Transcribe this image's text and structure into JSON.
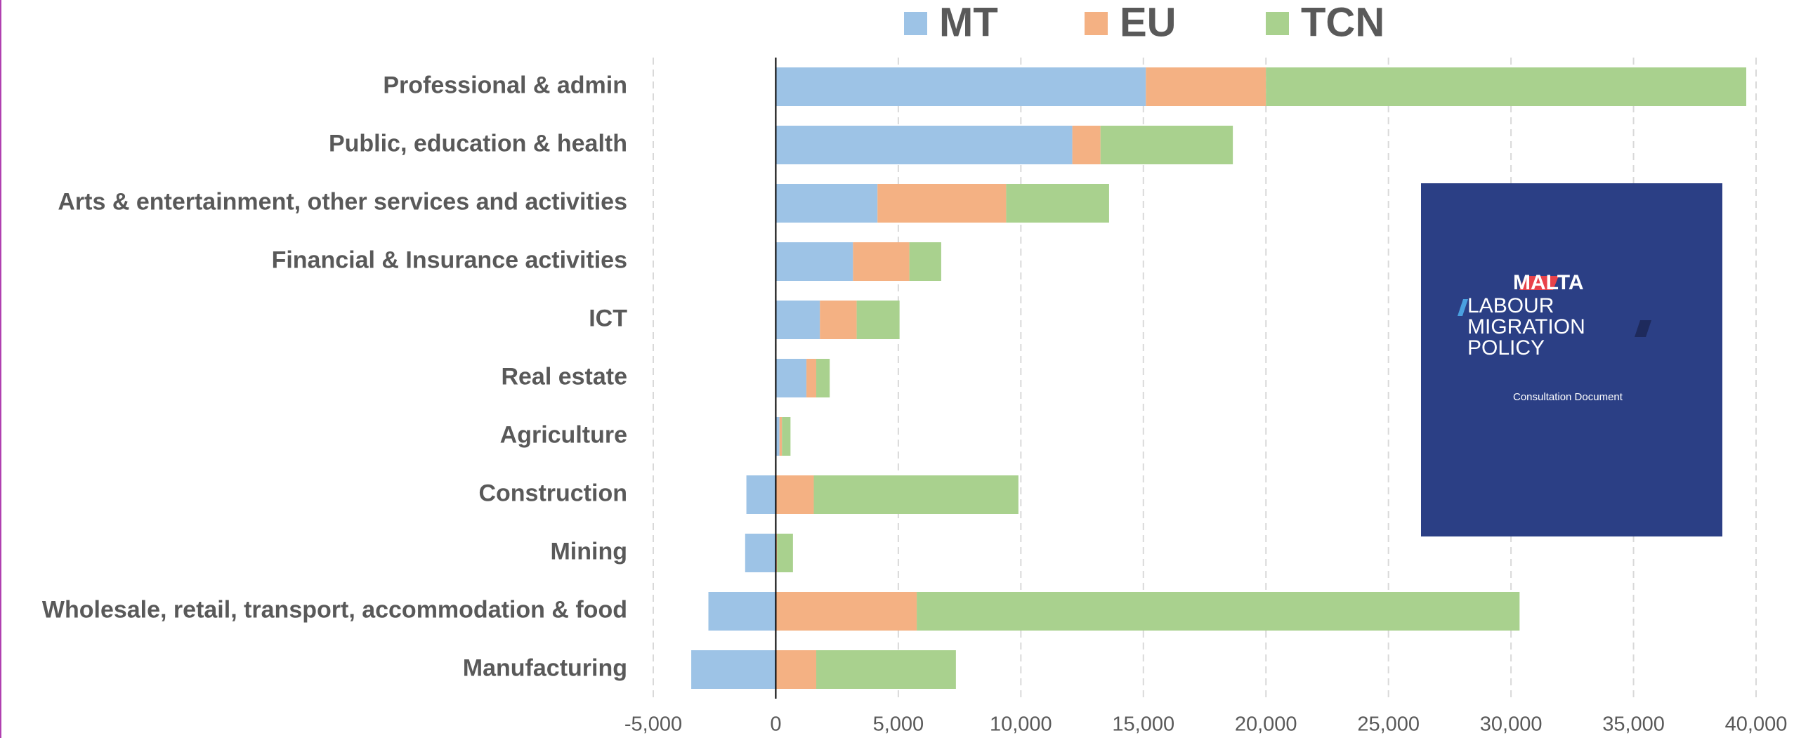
{
  "chart_data": {
    "type": "stacked_hbar",
    "categories": [
      "Professional & admin",
      "Public, education & health",
      "Arts & entertainment, other services and activities",
      "Financial & Insurance activities",
      "ICT",
      "Real estate",
      "Agriculture",
      "Construction",
      "Mining",
      "Wholesale, retail, transport, accommodation & food",
      "Manufacturing"
    ],
    "series": [
      {
        "name": "MT",
        "color": "#9dc3e6",
        "values": [
          15100,
          12100,
          4150,
          3150,
          1800,
          1250,
          150,
          -1200,
          -1250,
          -2750,
          -3450
        ]
      },
      {
        "name": "EU",
        "color": "#f4b183",
        "values": [
          4900,
          1150,
          5250,
          2300,
          1500,
          400,
          100,
          1550,
          50,
          5750,
          1650
        ]
      },
      {
        "name": "TCN",
        "color": "#a9d18e",
        "values": [
          19600,
          5400,
          4200,
          1300,
          1750,
          550,
          350,
          8350,
          650,
          24600,
          5700
        ]
      }
    ],
    "xlim": [
      -5000,
      40000
    ],
    "xticks": [
      {
        "value": -5000,
        "label": "-5,000"
      },
      0,
      {
        "value": 5000,
        "label": "5,000"
      },
      {
        "value": 10000,
        "label": "10,000"
      },
      {
        "value": 15000,
        "label": "15,000"
      },
      {
        "value": 20000,
        "label": "20,000"
      },
      {
        "value": 25000,
        "label": "25,000"
      },
      {
        "value": 30000,
        "label": "30,000"
      },
      {
        "value": 35000,
        "label": "35,000"
      },
      {
        "value": 40000,
        "label": "40,000"
      }
    ],
    "grid": true,
    "legend": "top",
    "inset": {
      "title": "MALTA",
      "lines": [
        "LABOUR",
        "MIGRATION",
        "POLICY"
      ],
      "subtitle": "Consultation Document"
    }
  }
}
